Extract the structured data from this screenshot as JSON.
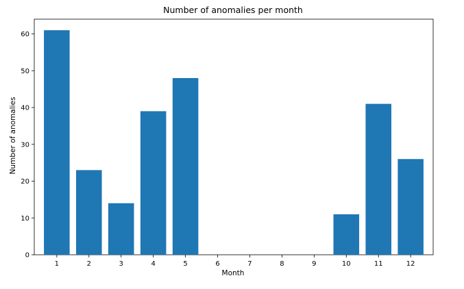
{
  "chart_data": {
    "type": "bar",
    "title": "Number of anomalies per month",
    "xlabel": "Month",
    "ylabel": "Number of anomalies",
    "categories": [
      "1",
      "2",
      "3",
      "4",
      "5",
      "6",
      "7",
      "8",
      "9",
      "10",
      "11",
      "12"
    ],
    "values": [
      61,
      23,
      14,
      39,
      48,
      0,
      0,
      0,
      0,
      11,
      41,
      26
    ],
    "ylim": [
      0,
      64
    ],
    "yticks": [
      0,
      10,
      20,
      30,
      40,
      50,
      60
    ],
    "ytick_labels": [
      "0",
      "10",
      "20",
      "30",
      "40",
      "50",
      "60"
    ],
    "grid": false,
    "legend": "none",
    "bar_color": "#1f77b4"
  }
}
